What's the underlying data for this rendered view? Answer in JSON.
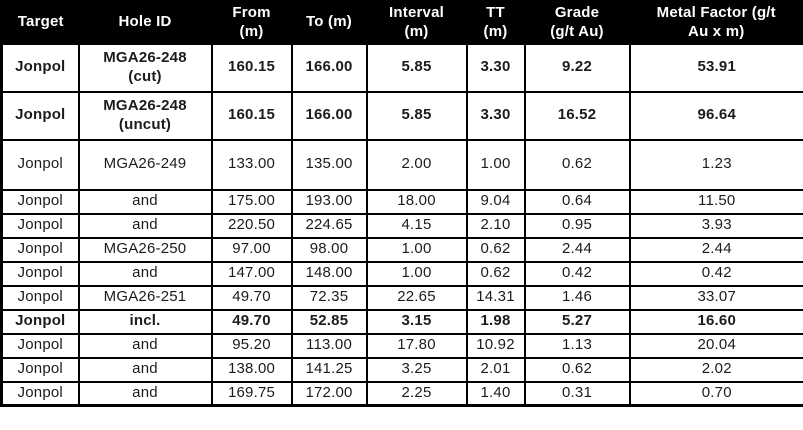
{
  "colors": {
    "header_bg": "#000000",
    "header_text": "#ffffff",
    "body_bg": "#ffffff",
    "border": "#000000",
    "body_text": "#1c1c1c"
  },
  "table": {
    "columns": [
      {
        "label": "Target"
      },
      {
        "label": "Hole ID"
      },
      {
        "label": "From\n(m)"
      },
      {
        "label": "To (m)"
      },
      {
        "label": "Interval\n(m)"
      },
      {
        "label": "TT\n(m)"
      },
      {
        "label": "Grade\n(g/t Au)"
      },
      {
        "label": "Metal Factor (g/t\nAu x m)"
      }
    ],
    "rows": [
      {
        "bold": true,
        "size": "h2",
        "cells": [
          "Jonpol",
          "MGA26-248\n(cut)",
          "160.15",
          "166.00",
          "5.85",
          "3.30",
          "9.22",
          "53.91"
        ]
      },
      {
        "bold": true,
        "size": "h2",
        "cells": [
          "Jonpol",
          "MGA26-248\n(uncut)",
          "160.15",
          "166.00",
          "5.85",
          "3.30",
          "16.52",
          "96.64"
        ]
      },
      {
        "bold": false,
        "size": "tall",
        "cells": [
          "Jonpol",
          "MGA26-249",
          "133.00",
          "135.00",
          "2.00",
          "1.00",
          "0.62",
          "1.23"
        ]
      },
      {
        "bold": false,
        "size": "",
        "cells": [
          "Jonpol",
          "and",
          "175.00",
          "193.00",
          "18.00",
          "9.04",
          "0.64",
          "11.50"
        ]
      },
      {
        "bold": false,
        "size": "",
        "cells": [
          "Jonpol",
          "and",
          "220.50",
          "224.65",
          "4.15",
          "2.10",
          "0.95",
          "3.93"
        ]
      },
      {
        "bold": false,
        "size": "",
        "cells": [
          "Jonpol",
          "MGA26-250",
          "97.00",
          "98.00",
          "1.00",
          "0.62",
          "2.44",
          "2.44"
        ]
      },
      {
        "bold": false,
        "size": "",
        "cells": [
          "Jonpol",
          "and",
          "147.00",
          "148.00",
          "1.00",
          "0.62",
          "0.42",
          "0.42"
        ]
      },
      {
        "bold": false,
        "size": "",
        "cells": [
          "Jonpol",
          "MGA26-251",
          "49.70",
          "72.35",
          "22.65",
          "14.31",
          "1.46",
          "33.07"
        ]
      },
      {
        "bold": true,
        "size": "",
        "cells": [
          "Jonpol",
          "incl.",
          "49.70",
          "52.85",
          "3.15",
          "1.98",
          "5.27",
          "16.60"
        ]
      },
      {
        "bold": false,
        "size": "",
        "cells": [
          "Jonpol",
          "and",
          "95.20",
          "113.00",
          "17.80",
          "10.92",
          "1.13",
          "20.04"
        ]
      },
      {
        "bold": false,
        "size": "",
        "cells": [
          "Jonpol",
          "and",
          "138.00",
          "141.25",
          "3.25",
          "2.01",
          "0.62",
          "2.02"
        ]
      },
      {
        "bold": false,
        "size": "",
        "cells": [
          "Jonpol",
          "and",
          "169.75",
          "172.00",
          "2.25",
          "1.40",
          "0.31",
          "0.70"
        ]
      }
    ]
  }
}
